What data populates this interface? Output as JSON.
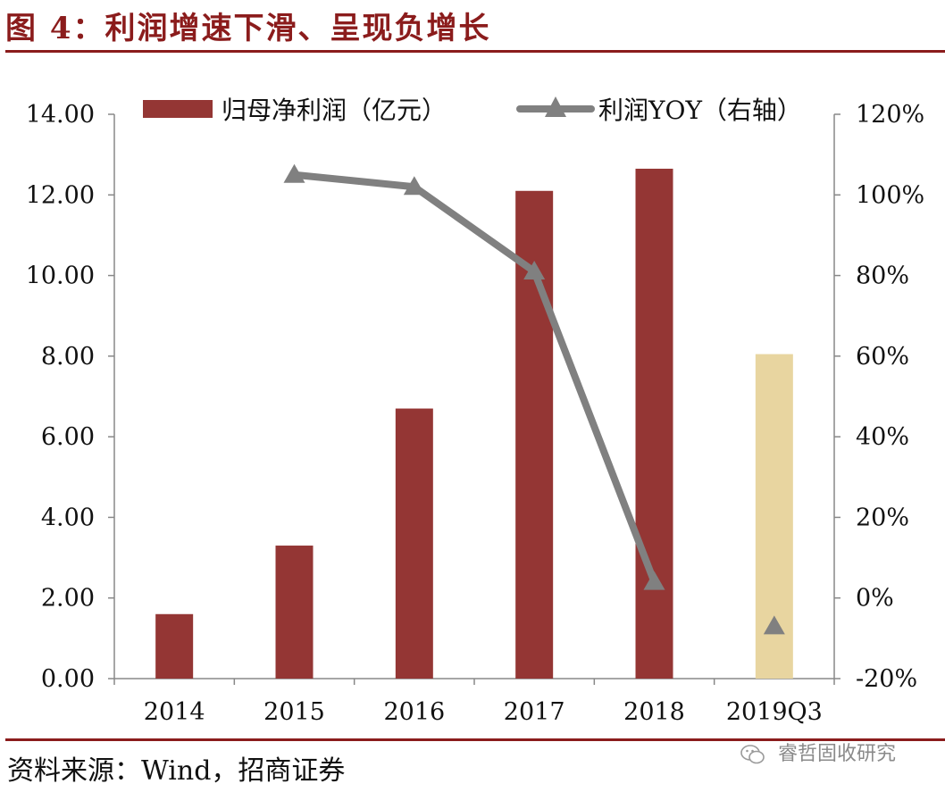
{
  "figure": {
    "title": "图 4：利润增速下滑、呈现负增长",
    "source": "资料来源：Wind，招商证券",
    "watermark": "睿哲固收研究",
    "colors": {
      "accent": "#8B1C1C"
    }
  },
  "chart_data": {
    "type": "bar",
    "categories": [
      "2014",
      "2015",
      "2016",
      "2017",
      "2018",
      "2019Q3"
    ],
    "series": [
      {
        "name": "归母净利润（亿元）",
        "type": "bar",
        "axis": "left",
        "values": [
          1.6,
          3.3,
          6.7,
          12.1,
          12.65,
          8.05
        ],
        "color": "#943634",
        "highlight": {
          "category": "2019Q3",
          "color": "#E8D5A0"
        }
      },
      {
        "name": "利润YOY（右轴）",
        "type": "line",
        "axis": "right",
        "marker": "triangle",
        "values": [
          null,
          1.05,
          1.02,
          0.81,
          0.04,
          -0.07
        ],
        "connected_until": "2018",
        "color": "#808080"
      }
    ],
    "y_left": {
      "lim": [
        0,
        14
      ],
      "ticks": [
        "0.00",
        "2.00",
        "4.00",
        "6.00",
        "8.00",
        "10.00",
        "12.00",
        "14.00"
      ]
    },
    "y_right": {
      "lim": [
        -0.2,
        1.2
      ],
      "ticks": [
        "-20%",
        "0%",
        "20%",
        "40%",
        "60%",
        "80%",
        "100%",
        "120%"
      ]
    },
    "legend_position": "top",
    "grid": false
  }
}
